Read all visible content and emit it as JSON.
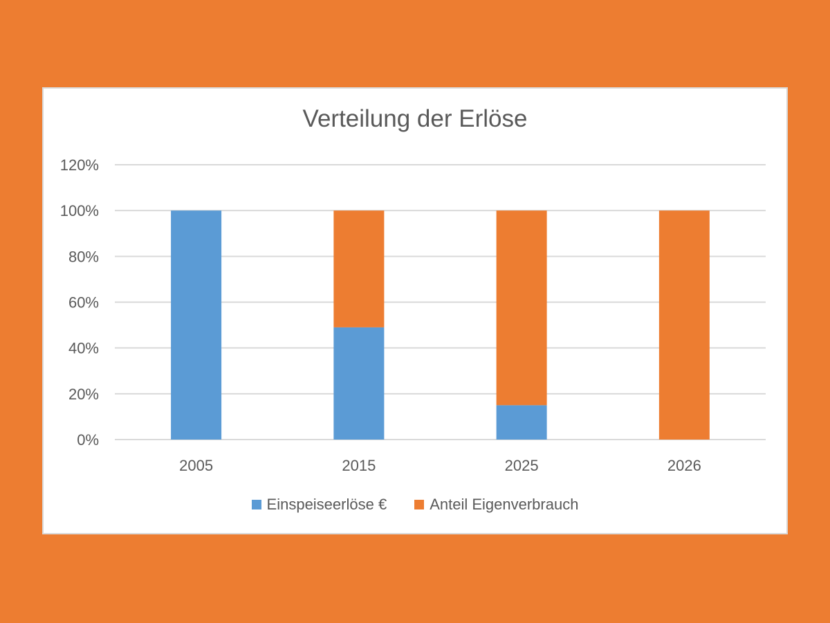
{
  "colors": {
    "background": "#ED7D31",
    "series_blue": "#5B9BD5",
    "series_orange": "#ED7D31",
    "grid": "#d9d9d9",
    "text": "#595959"
  },
  "chart_data": {
    "type": "bar",
    "stacked": true,
    "title": "Verteilung der Erlöse",
    "xlabel": "",
    "ylabel": "",
    "categories": [
      "2005",
      "2015",
      "2025",
      "2026"
    ],
    "series": [
      {
        "name": "Einspeiseerlöse €",
        "color": "#5B9BD5",
        "values": [
          1.0,
          0.49,
          0.15,
          0.0
        ]
      },
      {
        "name": "Anteil Eigenverbrauch",
        "color": "#ED7D31",
        "values": [
          0.0,
          0.51,
          0.85,
          1.0
        ]
      }
    ],
    "ylim": [
      0,
      1.2
    ],
    "yticks": [
      0,
      0.2,
      0.4,
      0.6,
      0.8,
      1.0,
      1.2
    ],
    "ytick_labels": [
      "0%",
      "20%",
      "40%",
      "60%",
      "80%",
      "100%",
      "120%"
    ],
    "grid": true,
    "legend_position": "bottom"
  }
}
